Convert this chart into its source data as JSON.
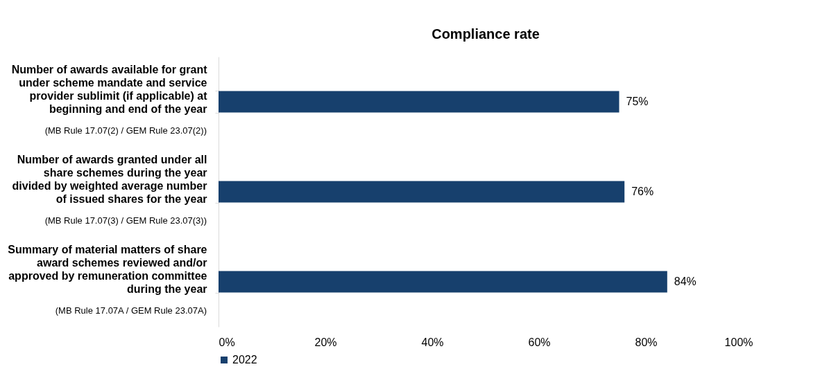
{
  "chart_data": {
    "type": "bar",
    "orientation": "horizontal",
    "title": "Compliance rate",
    "categories": [
      "Number of awards available for grant under scheme mandate and service provider sublimit (if applicable) at beginning and end of the year (MB Rule 17.07(2) / GEM Rule 23.07(2))",
      "Number of awards granted under all share schemes during the year divided by weighted average number of issued shares for the year (MB Rule 17.07(3) / GEM Rule 23.07(3))",
      "Summary of material matters of share award schemes reviewed and/or approved by remuneration committee during the year (MB Rule 17.07A / GEM Rule 23.07A)"
    ],
    "series": [
      {
        "name": "2022",
        "color": "#17406d",
        "values": [
          75,
          76,
          84
        ],
        "value_labels": [
          "75%",
          "76%",
          "84%"
        ]
      }
    ],
    "xlim": [
      0,
      100
    ],
    "xticks": [
      {
        "value": 0,
        "label": "0%"
      },
      {
        "value": 20,
        "label": "20%"
      },
      {
        "value": 40,
        "label": "40%"
      },
      {
        "value": 60,
        "label": "60%"
      },
      {
        "value": 80,
        "label": "80%"
      },
      {
        "value": 100,
        "label": "100%"
      }
    ],
    "grid": false,
    "legend": "bottom"
  }
}
